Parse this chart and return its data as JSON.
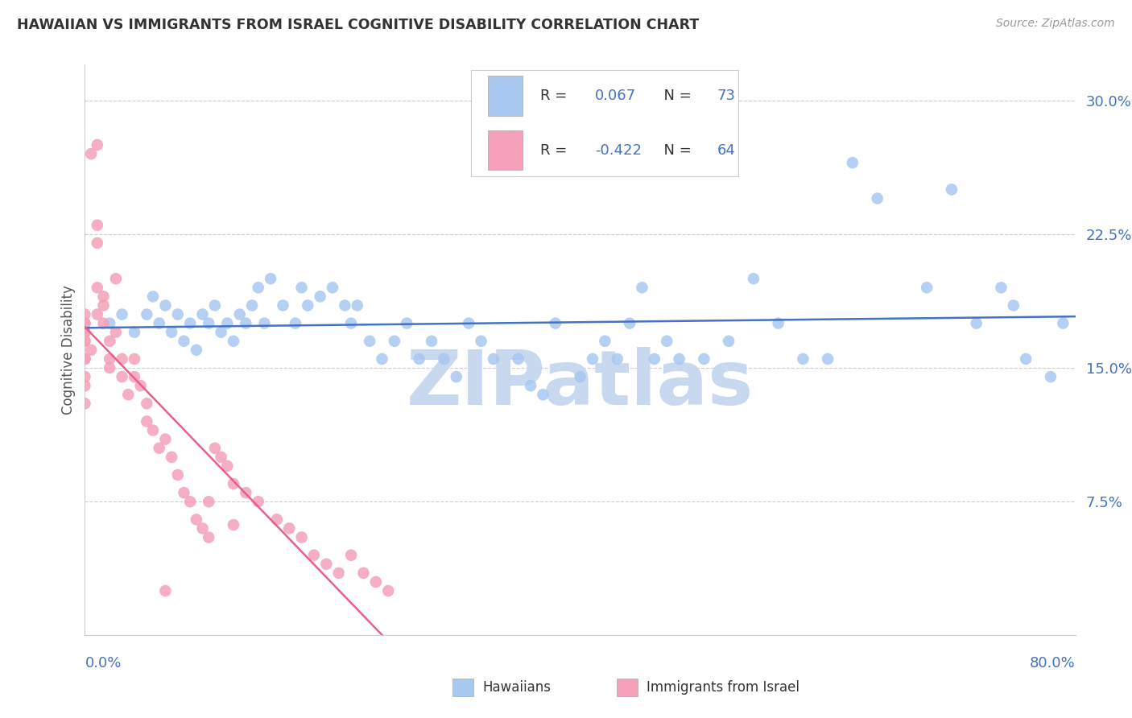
{
  "title": "HAWAIIAN VS IMMIGRANTS FROM ISRAEL COGNITIVE DISABILITY CORRELATION CHART",
  "source": "Source: ZipAtlas.com",
  "ylabel": "Cognitive Disability",
  "xlim": [
    0.0,
    0.8
  ],
  "ylim": [
    0.0,
    0.32
  ],
  "yticks": [
    0.075,
    0.15,
    0.225,
    0.3
  ],
  "ytick_labels": [
    "7.5%",
    "15.0%",
    "22.5%",
    "30.0%"
  ],
  "r_hawaiian": 0.067,
  "n_hawaiian": 73,
  "r_israel": -0.422,
  "n_israel": 64,
  "hawaiian_color": "#A8C8F0",
  "israel_color": "#F4A0B8",
  "hawaiian_line_color": "#4472C4",
  "israel_line_color": "#E8608A",
  "watermark": "ZIPatlas",
  "watermark_color": "#C8D8EE",
  "background_color": "#FFFFFF",
  "legend_text_color": "#4472C4",
  "legend_label_color": "#333333",
  "hawaiian_x": [
    0.02,
    0.03,
    0.04,
    0.05,
    0.055,
    0.06,
    0.065,
    0.07,
    0.075,
    0.08,
    0.085,
    0.09,
    0.095,
    0.1,
    0.105,
    0.11,
    0.115,
    0.12,
    0.125,
    0.13,
    0.135,
    0.14,
    0.145,
    0.15,
    0.16,
    0.17,
    0.175,
    0.18,
    0.19,
    0.2,
    0.21,
    0.215,
    0.22,
    0.23,
    0.24,
    0.25,
    0.26,
    0.27,
    0.28,
    0.29,
    0.3,
    0.31,
    0.32,
    0.33,
    0.35,
    0.36,
    0.37,
    0.38,
    0.4,
    0.41,
    0.42,
    0.43,
    0.44,
    0.45,
    0.46,
    0.47,
    0.48,
    0.5,
    0.52,
    0.54,
    0.56,
    0.58,
    0.6,
    0.62,
    0.64,
    0.68,
    0.7,
    0.72,
    0.74,
    0.76,
    0.78,
    0.79,
    0.75
  ],
  "hawaiian_y": [
    0.175,
    0.18,
    0.17,
    0.18,
    0.19,
    0.175,
    0.185,
    0.17,
    0.18,
    0.165,
    0.175,
    0.16,
    0.18,
    0.175,
    0.185,
    0.17,
    0.175,
    0.165,
    0.18,
    0.175,
    0.185,
    0.195,
    0.175,
    0.2,
    0.185,
    0.175,
    0.195,
    0.185,
    0.19,
    0.195,
    0.185,
    0.175,
    0.185,
    0.165,
    0.155,
    0.165,
    0.175,
    0.155,
    0.165,
    0.155,
    0.145,
    0.175,
    0.165,
    0.155,
    0.155,
    0.14,
    0.135,
    0.175,
    0.145,
    0.155,
    0.165,
    0.155,
    0.175,
    0.195,
    0.155,
    0.165,
    0.155,
    0.155,
    0.165,
    0.2,
    0.175,
    0.155,
    0.155,
    0.265,
    0.245,
    0.195,
    0.25,
    0.175,
    0.195,
    0.155,
    0.145,
    0.175,
    0.185
  ],
  "israel_x": [
    0.0,
    0.0,
    0.0,
    0.0,
    0.0,
    0.0,
    0.0,
    0.0,
    0.0,
    0.0,
    0.0,
    0.0,
    0.005,
    0.005,
    0.01,
    0.01,
    0.01,
    0.01,
    0.01,
    0.015,
    0.015,
    0.015,
    0.02,
    0.02,
    0.02,
    0.025,
    0.025,
    0.03,
    0.03,
    0.035,
    0.04,
    0.04,
    0.045,
    0.05,
    0.05,
    0.055,
    0.06,
    0.065,
    0.07,
    0.075,
    0.08,
    0.085,
    0.09,
    0.095,
    0.1,
    0.105,
    0.11,
    0.115,
    0.12,
    0.13,
    0.14,
    0.155,
    0.165,
    0.175,
    0.185,
    0.195,
    0.205,
    0.215,
    0.225,
    0.235,
    0.245,
    0.1,
    0.12,
    0.065
  ],
  "israel_y": [
    0.17,
    0.175,
    0.18,
    0.155,
    0.165,
    0.17,
    0.14,
    0.145,
    0.13,
    0.155,
    0.165,
    0.175,
    0.16,
    0.27,
    0.275,
    0.22,
    0.23,
    0.195,
    0.18,
    0.175,
    0.185,
    0.19,
    0.165,
    0.15,
    0.155,
    0.17,
    0.2,
    0.155,
    0.145,
    0.135,
    0.145,
    0.155,
    0.14,
    0.13,
    0.12,
    0.115,
    0.105,
    0.11,
    0.1,
    0.09,
    0.08,
    0.075,
    0.065,
    0.06,
    0.055,
    0.105,
    0.1,
    0.095,
    0.085,
    0.08,
    0.075,
    0.065,
    0.06,
    0.055,
    0.045,
    0.04,
    0.035,
    0.045,
    0.035,
    0.03,
    0.025,
    0.075,
    0.062,
    0.025
  ]
}
